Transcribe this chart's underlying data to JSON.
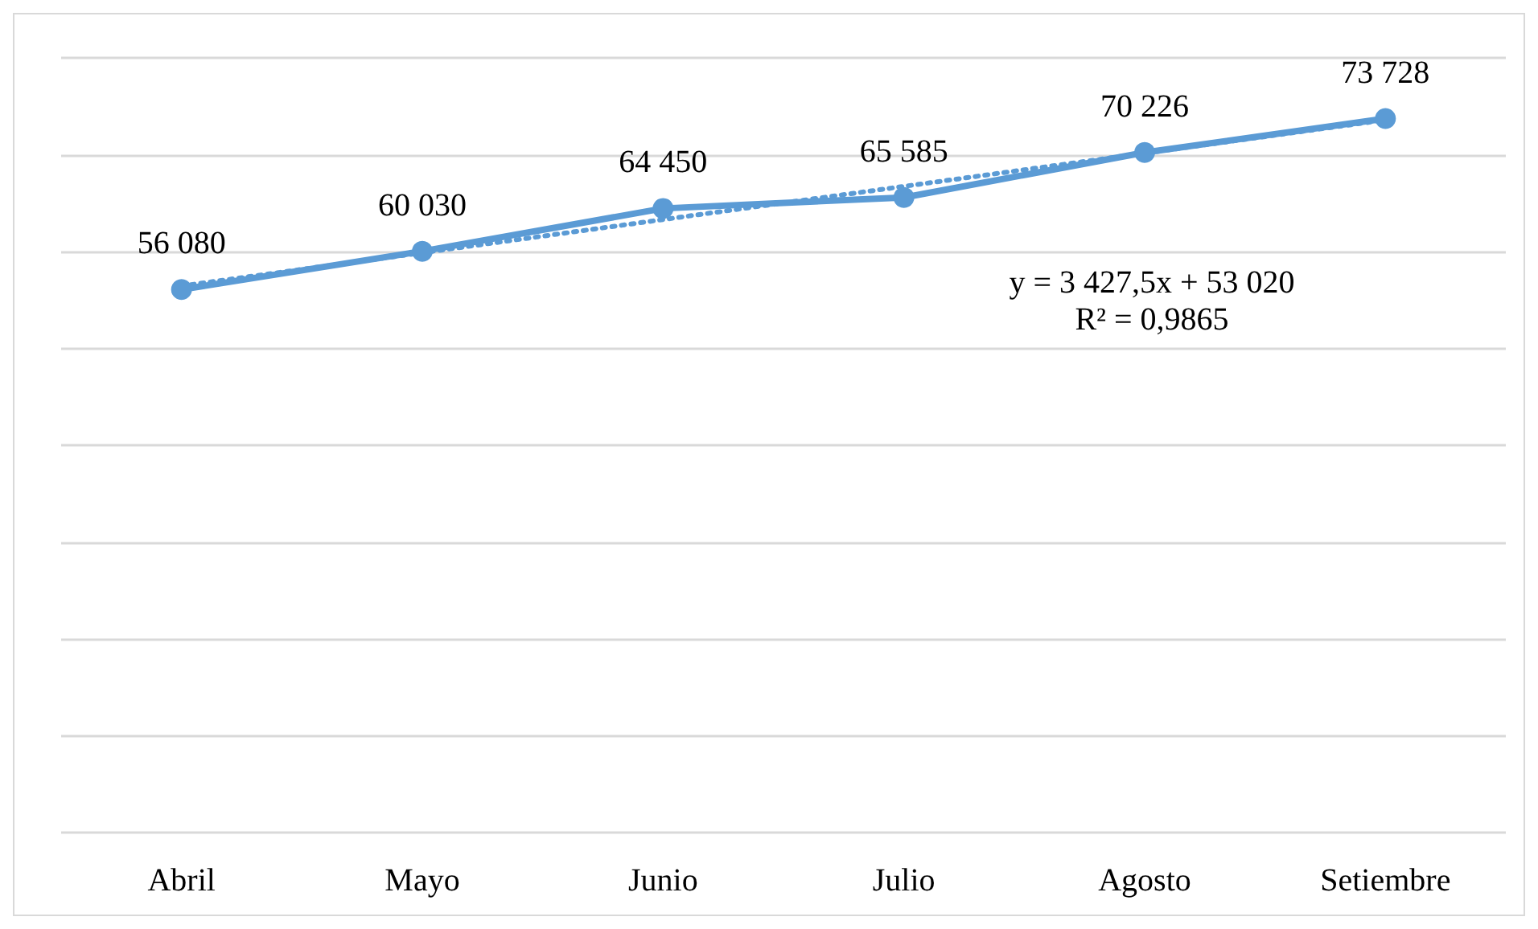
{
  "chart_data": {
    "type": "line",
    "categories": [
      "Abril",
      "Mayo",
      "Junio",
      "Julio",
      "Agosto",
      "Setiembre"
    ],
    "series": [
      {
        "color": "#5b9bd5",
        "values": [
          56080,
          60030,
          64450,
          65585,
          70226,
          73728
        ],
        "value_labels": [
          "56 080",
          "60 030",
          "64 450",
          "65 585",
          "70 226",
          "73 728"
        ],
        "marker": "circle",
        "line_style": "solid"
      },
      {
        "type": "line",
        "color": "#5b9bd5",
        "values": [
          56447.5,
          59875,
          63302.5,
          66730,
          70157.5,
          73585
        ],
        "marker": "none",
        "line_style": "dotted"
      }
    ],
    "ylim": [
      0,
      80000
    ],
    "yticks": [
      {
        "value": 0,
        "label": null
      },
      {
        "value": 10000,
        "label": null
      },
      {
        "value": 20000,
        "label": null
      },
      {
        "value": 30000,
        "label": null
      },
      {
        "value": 40000,
        "label": null
      },
      {
        "value": 50000,
        "label": null
      },
      {
        "value": 60000,
        "label": null
      },
      {
        "value": 70000,
        "label": null
      },
      {
        "value": 80000,
        "label": null
      }
    ],
    "grid": "y",
    "tick_labels": "x",
    "annotations": [
      "y = 3 427,5x + 53 020",
      "R² = 0,9865"
    ]
  }
}
